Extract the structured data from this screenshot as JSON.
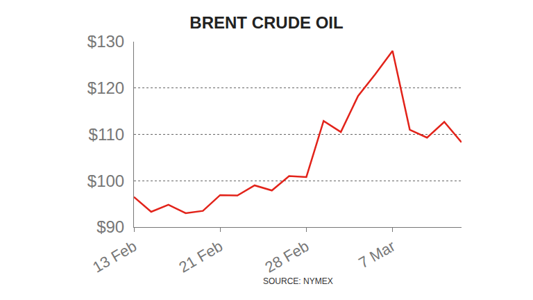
{
  "chart_data": {
    "type": "line",
    "title": "BRENT CRUDE OIL",
    "source": "SOURCE: NYMEX",
    "categories": [
      "13 Feb",
      null,
      null,
      null,
      null,
      "21 Feb",
      null,
      null,
      null,
      null,
      "28 Feb",
      null,
      null,
      null,
      null,
      "7 Mar",
      null,
      null,
      null,
      null
    ],
    "values": [
      96.5,
      93.3,
      94.8,
      93.0,
      93.5,
      96.9,
      96.8,
      99.0,
      97.9,
      101.0,
      100.8,
      112.9,
      110.5,
      118.3,
      123.0,
      128.0,
      111.0,
      109.3,
      112.7,
      108.3
    ],
    "color": "#e2231a",
    "ylim": [
      90,
      130
    ],
    "yticks": [
      {
        "value": 90,
        "label": "$90"
      },
      {
        "value": 100,
        "label": "$100"
      },
      {
        "value": 110,
        "label": "$110"
      },
      {
        "value": 120,
        "label": "$120"
      },
      {
        "value": 130,
        "label": "$130"
      }
    ],
    "grid": true
  }
}
